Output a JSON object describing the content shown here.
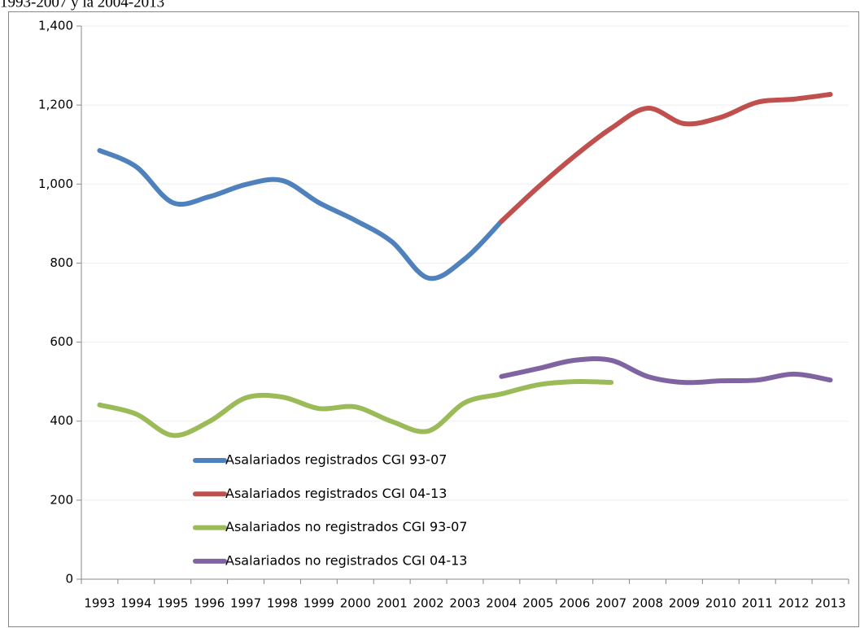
{
  "chart_data": {
    "type": "line",
    "title": "1993-2007 y la 2004-2013",
    "categories": [
      "1993",
      "1994",
      "1995",
      "1996",
      "1997",
      "1998",
      "1999",
      "2000",
      "2001",
      "2002",
      "2003",
      "2004",
      "2005",
      "2006",
      "2007",
      "2008",
      "2009",
      "2010",
      "2011",
      "2012",
      "2013"
    ],
    "series": [
      {
        "name": "Asalariados registrados CGI 93-07",
        "color": "#4f81bd",
        "values": [
          1085,
          1044,
          953,
          968,
          999,
          1009,
          953,
          908,
          854,
          762,
          811,
          906,
          null,
          null,
          null,
          null,
          null,
          null,
          null,
          null,
          null
        ]
      },
      {
        "name": "Asalariados registrados CGI 04-13",
        "color": "#c0504d",
        "values": [
          null,
          null,
          null,
          null,
          null,
          null,
          null,
          null,
          null,
          null,
          null,
          906,
          992,
          1071,
          1141,
          1192,
          1153,
          1169,
          1207,
          1215,
          1227
        ]
      },
      {
        "name": "Asalariados no registrados CGI 93-07",
        "color": "#9bbb59",
        "values": [
          441,
          418,
          364,
          399,
          459,
          461,
          432,
          436,
          399,
          375,
          447,
          469,
          492,
          500,
          498,
          null,
          null,
          null,
          null,
          null,
          null
        ]
      },
      {
        "name": "Asalariados no registrados CGI 04-13",
        "color": "#8064a2",
        "values": [
          null,
          null,
          null,
          null,
          null,
          null,
          null,
          null,
          null,
          null,
          null,
          513,
          533,
          554,
          554,
          513,
          498,
          502,
          504,
          519,
          504
        ]
      }
    ],
    "ylim": [
      0,
      1400
    ],
    "yticks": [
      0,
      200,
      400,
      600,
      800,
      {
        "value": 1000,
        "label": "1,000"
      },
      {
        "value": 1200,
        "label": "1,200"
      },
      {
        "value": 1400,
        "label": "1,400"
      }
    ],
    "grid": true,
    "smooth": true,
    "legend": "lower-left"
  }
}
